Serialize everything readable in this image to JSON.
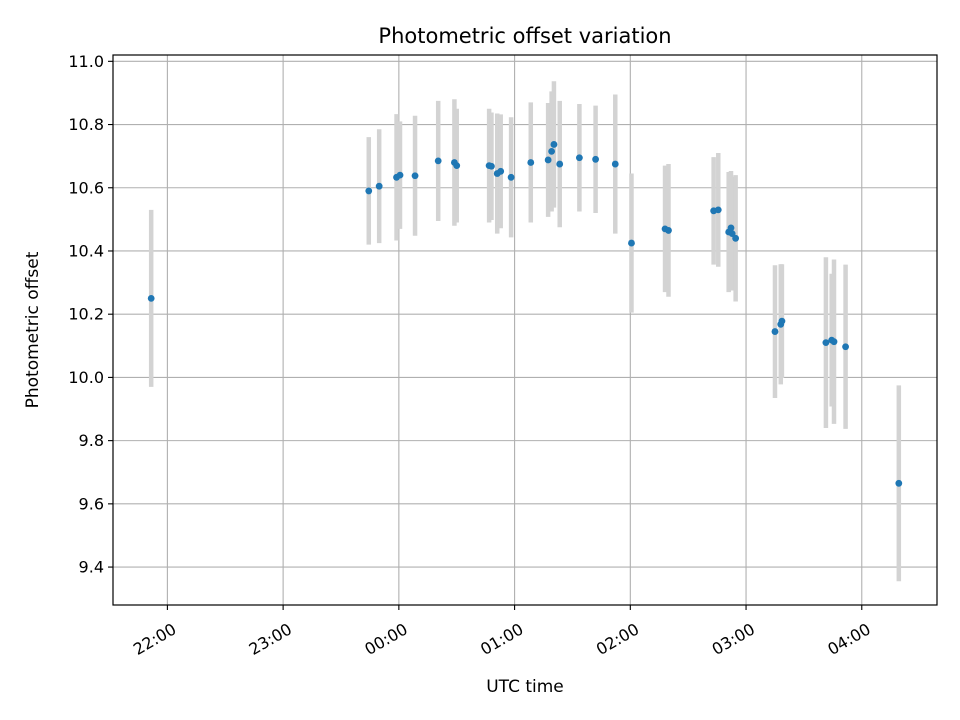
{
  "chart_data": {
    "type": "scatter",
    "title": "Photometric offset variation",
    "xlabel": "UTC time",
    "ylabel": "Photometric offset",
    "x_unit": "hours since 00:00 UTC",
    "xlim": [
      -2.47,
      4.65
    ],
    "ylim": [
      9.28,
      11.02
    ],
    "grid": true,
    "x_ticks": [
      {
        "value": -2.0,
        "label": "22:00"
      },
      {
        "value": -1.0,
        "label": "23:00"
      },
      {
        "value": 0.0,
        "label": "00:00"
      },
      {
        "value": 1.0,
        "label": "01:00"
      },
      {
        "value": 2.0,
        "label": "02:00"
      },
      {
        "value": 3.0,
        "label": "03:00"
      },
      {
        "value": 4.0,
        "label": "04:00"
      }
    ],
    "y_ticks": [
      {
        "value": 9.4,
        "label": "9.4"
      },
      {
        "value": 9.6,
        "label": "9.6"
      },
      {
        "value": 9.8,
        "label": "9.8"
      },
      {
        "value": 10.0,
        "label": "10.0"
      },
      {
        "value": 10.2,
        "label": "10.2"
      },
      {
        "value": 10.4,
        "label": "10.4"
      },
      {
        "value": 10.6,
        "label": "10.6"
      },
      {
        "value": 10.8,
        "label": "10.8"
      },
      {
        "value": 11.0,
        "label": "11.0"
      }
    ],
    "colors": {
      "point": "#1f77b4",
      "errorbar": "#d3d3d3",
      "grid": "#b0b0b0",
      "axes": "#000000"
    },
    "series": [
      {
        "name": "Photometric offset",
        "points": [
          {
            "x": -2.14,
            "y": 10.25,
            "err": 0.28
          },
          {
            "x": -0.26,
            "y": 10.59,
            "err": 0.17
          },
          {
            "x": -0.17,
            "y": 10.605,
            "err": 0.18
          },
          {
            "x": -0.02,
            "y": 10.633,
            "err": 0.2
          },
          {
            "x": 0.01,
            "y": 10.64,
            "err": 0.17
          },
          {
            "x": 0.14,
            "y": 10.638,
            "err": 0.19
          },
          {
            "x": 0.34,
            "y": 10.685,
            "err": 0.19
          },
          {
            "x": 0.48,
            "y": 10.68,
            "err": 0.2
          },
          {
            "x": 0.5,
            "y": 10.67,
            "err": 0.18
          },
          {
            "x": 0.78,
            "y": 10.67,
            "err": 0.18
          },
          {
            "x": 0.8,
            "y": 10.668,
            "err": 0.17
          },
          {
            "x": 0.85,
            "y": 10.645,
            "err": 0.19
          },
          {
            "x": 0.88,
            "y": 10.652,
            "err": 0.18
          },
          {
            "x": 0.97,
            "y": 10.633,
            "err": 0.19
          },
          {
            "x": 1.14,
            "y": 10.68,
            "err": 0.19
          },
          {
            "x": 1.29,
            "y": 10.688,
            "err": 0.18
          },
          {
            "x": 1.32,
            "y": 10.715,
            "err": 0.19
          },
          {
            "x": 1.34,
            "y": 10.737,
            "err": 0.2
          },
          {
            "x": 1.39,
            "y": 10.675,
            "err": 0.2
          },
          {
            "x": 1.56,
            "y": 10.695,
            "err": 0.17
          },
          {
            "x": 1.7,
            "y": 10.69,
            "err": 0.17
          },
          {
            "x": 1.87,
            "y": 10.675,
            "err": 0.22
          },
          {
            "x": 2.01,
            "y": 10.425,
            "err": 0.22
          },
          {
            "x": 2.3,
            "y": 10.47,
            "err": 0.2
          },
          {
            "x": 2.33,
            "y": 10.465,
            "err": 0.21
          },
          {
            "x": 2.72,
            "y": 10.527,
            "err": 0.17
          },
          {
            "x": 2.76,
            "y": 10.53,
            "err": 0.18
          },
          {
            "x": 2.85,
            "y": 10.46,
            "err": 0.19
          },
          {
            "x": 2.87,
            "y": 10.473,
            "err": 0.18
          },
          {
            "x": 2.88,
            "y": 10.455,
            "err": 0.18
          },
          {
            "x": 2.91,
            "y": 10.44,
            "err": 0.2
          },
          {
            "x": 3.25,
            "y": 10.145,
            "err": 0.21
          },
          {
            "x": 3.3,
            "y": 10.168,
            "err": 0.19
          },
          {
            "x": 3.31,
            "y": 10.178,
            "err": 0.18
          },
          {
            "x": 3.69,
            "y": 10.11,
            "err": 0.27
          },
          {
            "x": 3.74,
            "y": 10.118,
            "err": 0.21
          },
          {
            "x": 3.76,
            "y": 10.113,
            "err": 0.26
          },
          {
            "x": 3.86,
            "y": 10.097,
            "err": 0.26
          },
          {
            "x": 4.32,
            "y": 9.665,
            "err": 0.31
          }
        ]
      }
    ]
  }
}
